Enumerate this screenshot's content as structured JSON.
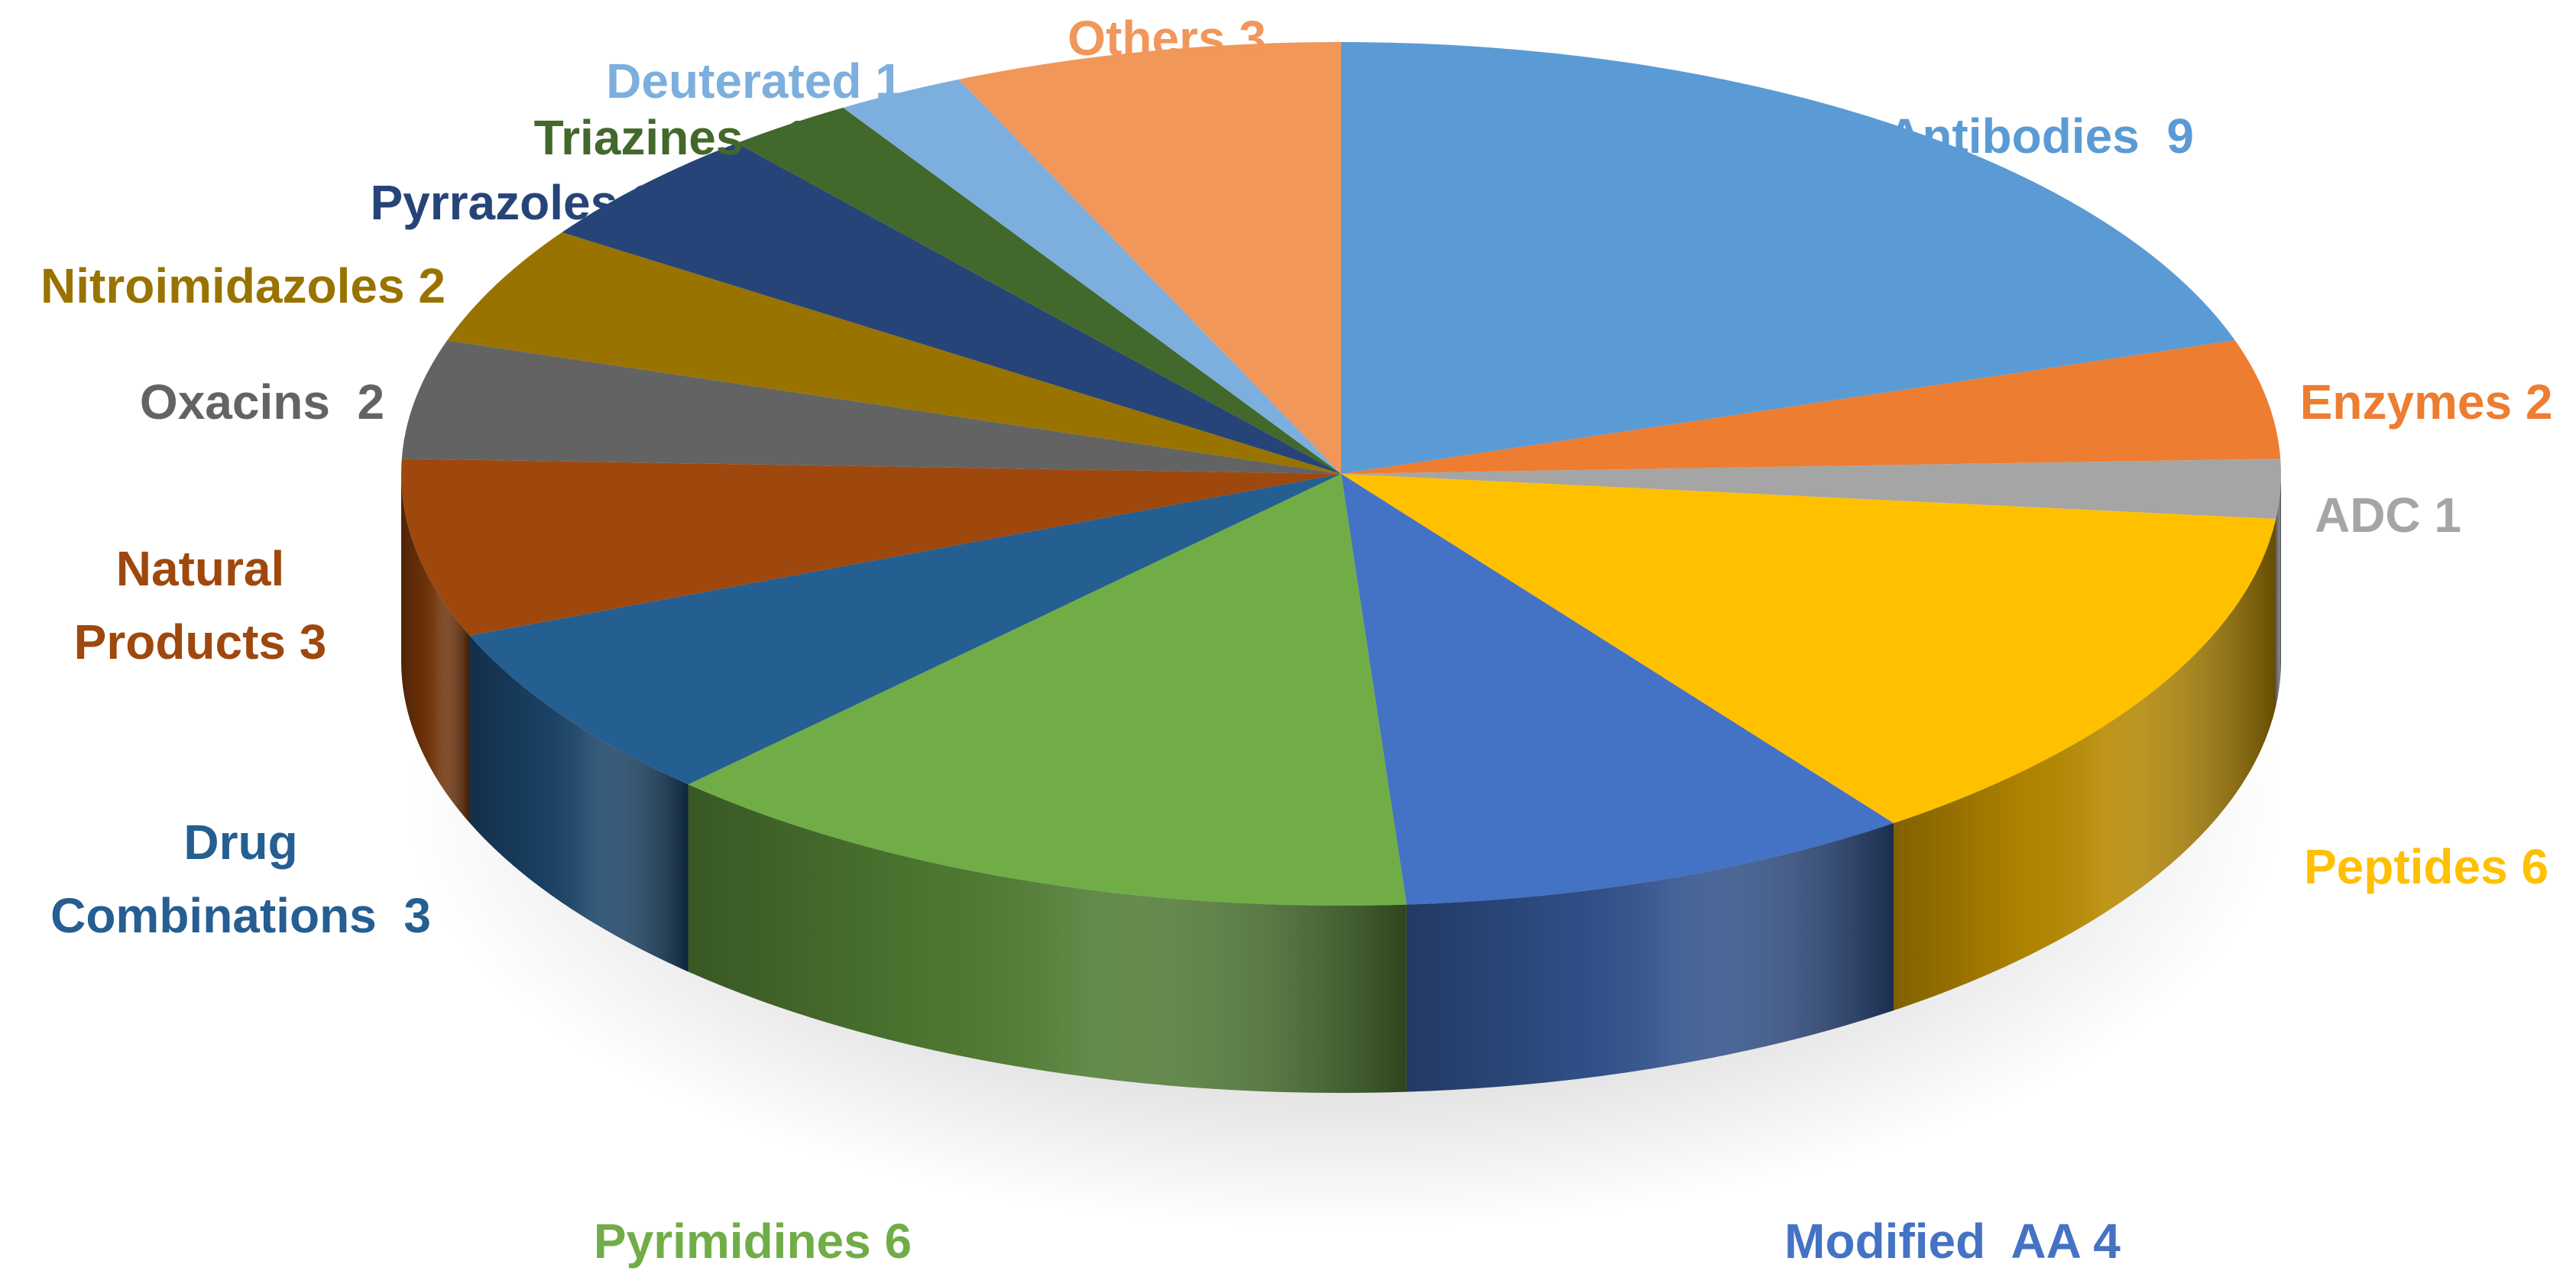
{
  "chart_data": {
    "type": "pie",
    "title": "",
    "slices": [
      {
        "name": "Antibodies",
        "label": "Antibodies  9",
        "value": 9,
        "color": "#5B9BD5"
      },
      {
        "name": "Enzymes",
        "label": "Enzymes 2",
        "value": 2,
        "color": "#ED7D31"
      },
      {
        "name": "ADC",
        "label": "ADC 1",
        "value": 1,
        "color": "#A5A5A5"
      },
      {
        "name": "Peptides",
        "label": "Peptides 6",
        "value": 6,
        "color": "#FFC000"
      },
      {
        "name": "Modified AA",
        "label": "Modified  AA 4",
        "value": 4,
        "color": "#4472C4"
      },
      {
        "name": "Pyrimidines",
        "label": "Pyrimidines 6",
        "value": 6,
        "color": "#70AD47"
      },
      {
        "name": "Drug Combinations",
        "label": "Drug\nCombinations  3",
        "value": 3,
        "color": "#255E91"
      },
      {
        "name": "Natural Products",
        "label": "Natural\nProducts 3",
        "value": 3,
        "color": "#9E480E"
      },
      {
        "name": "Oxacins",
        "label": "Oxacins  2",
        "value": 2,
        "color": "#636363"
      },
      {
        "name": "Nitroimidazoles",
        "label": "Nitroimidazoles 2",
        "value": 2,
        "color": "#997300"
      },
      {
        "name": "Pyrrazoles",
        "label": "Pyrrazoles 2",
        "value": 2,
        "color": "#264478"
      },
      {
        "name": "Triazines",
        "label": "Triazines   1",
        "value": 1,
        "color": "#43682B"
      },
      {
        "name": "Deuterated",
        "label": "Deuterated 1",
        "value": 1,
        "color": "#7CAFDD"
      },
      {
        "name": "Others",
        "label": "Others 3",
        "value": 3,
        "color": "#F1975A"
      }
    ],
    "label_colors": [
      "#5B9BD5",
      "#ED7D31",
      "#A5A5A5",
      "#FFC000",
      "#4472C4",
      "#70AD47",
      "#255E91",
      "#9E480E",
      "#636363",
      "#997300",
      "#264478",
      "#43682B",
      "#7CAFDD",
      "#F1975A"
    ],
    "style": "3d-exploded-perspective"
  }
}
